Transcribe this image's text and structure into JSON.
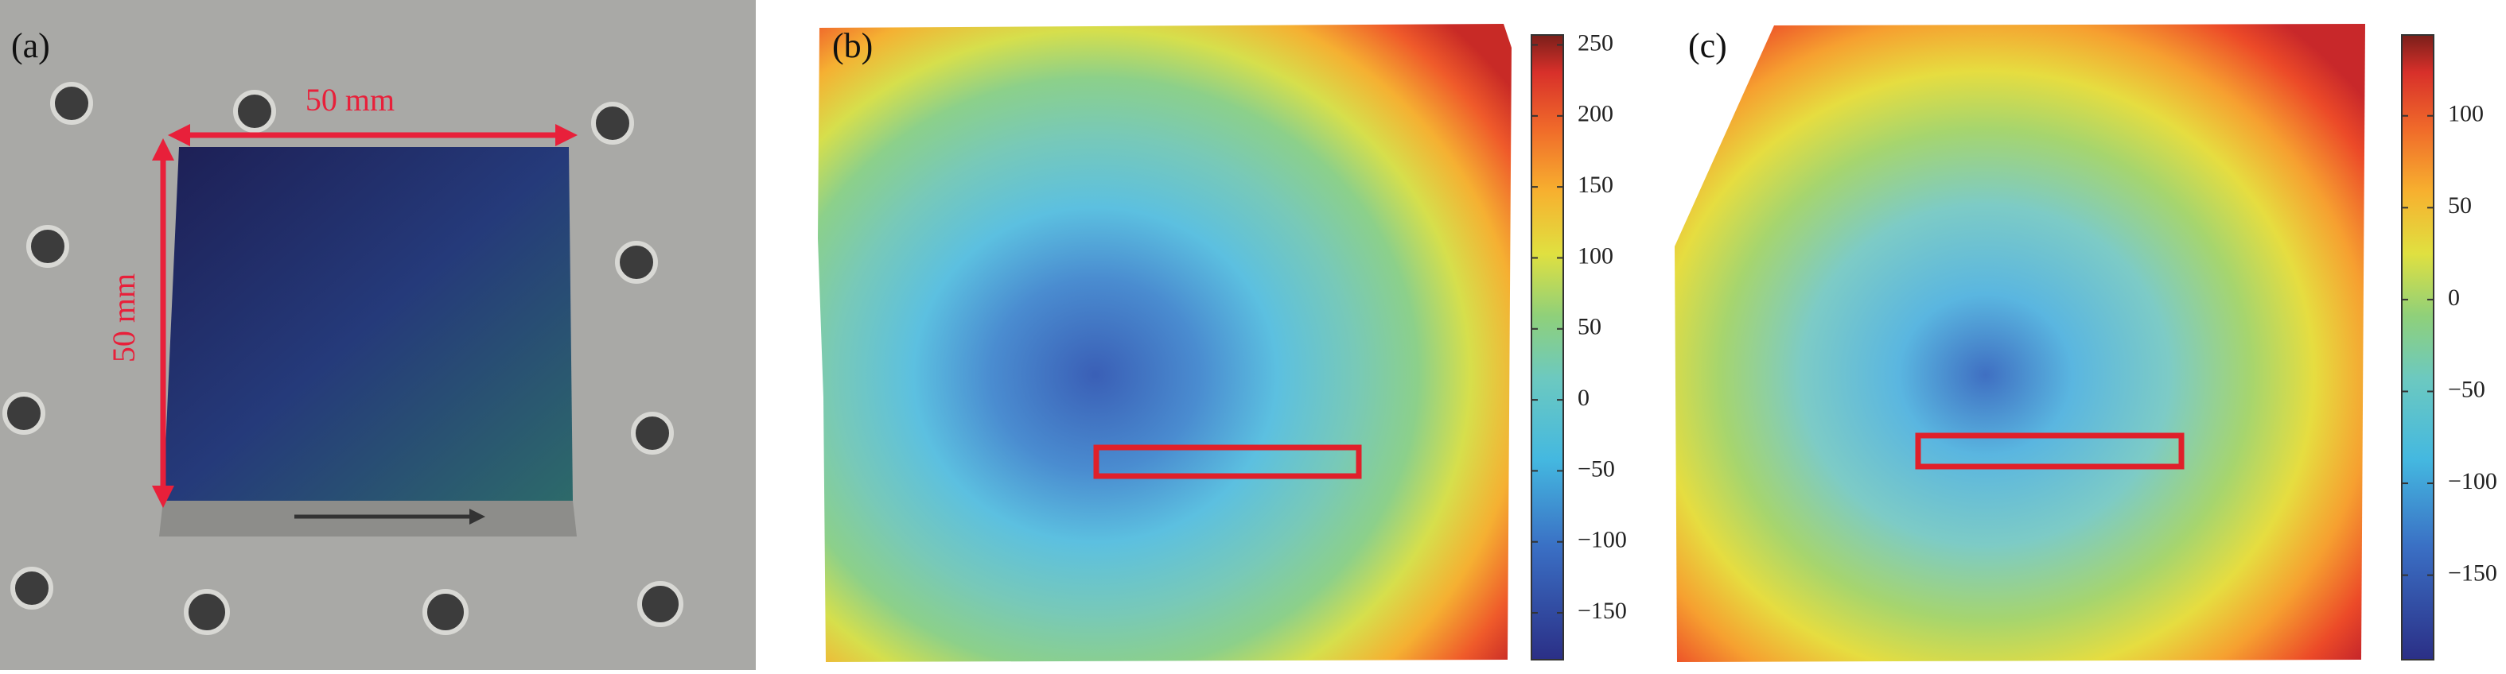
{
  "panels": [
    {
      "label": "(a)",
      "annotations": [
        "50 mm",
        "50 mm"
      ]
    },
    {
      "label": "(b)",
      "colorbar": {
        "lim": [
          -183,
          257
        ],
        "ticks": [
          {
            "value": -150,
            "label": "−150"
          },
          {
            "value": -100,
            "label": "−100"
          },
          {
            "value": -50,
            "label": "−50"
          },
          0,
          50,
          100,
          150,
          200,
          250
        ]
      }
    },
    {
      "label": "(c)",
      "colorbar": {
        "lim": [
          -196,
          144
        ],
        "ticks": [
          {
            "value": -150,
            "label": "−150"
          },
          {
            "value": -100,
            "label": "−100"
          },
          {
            "value": -50,
            "label": "−50"
          },
          0,
          50,
          100
        ]
      }
    }
  ]
}
